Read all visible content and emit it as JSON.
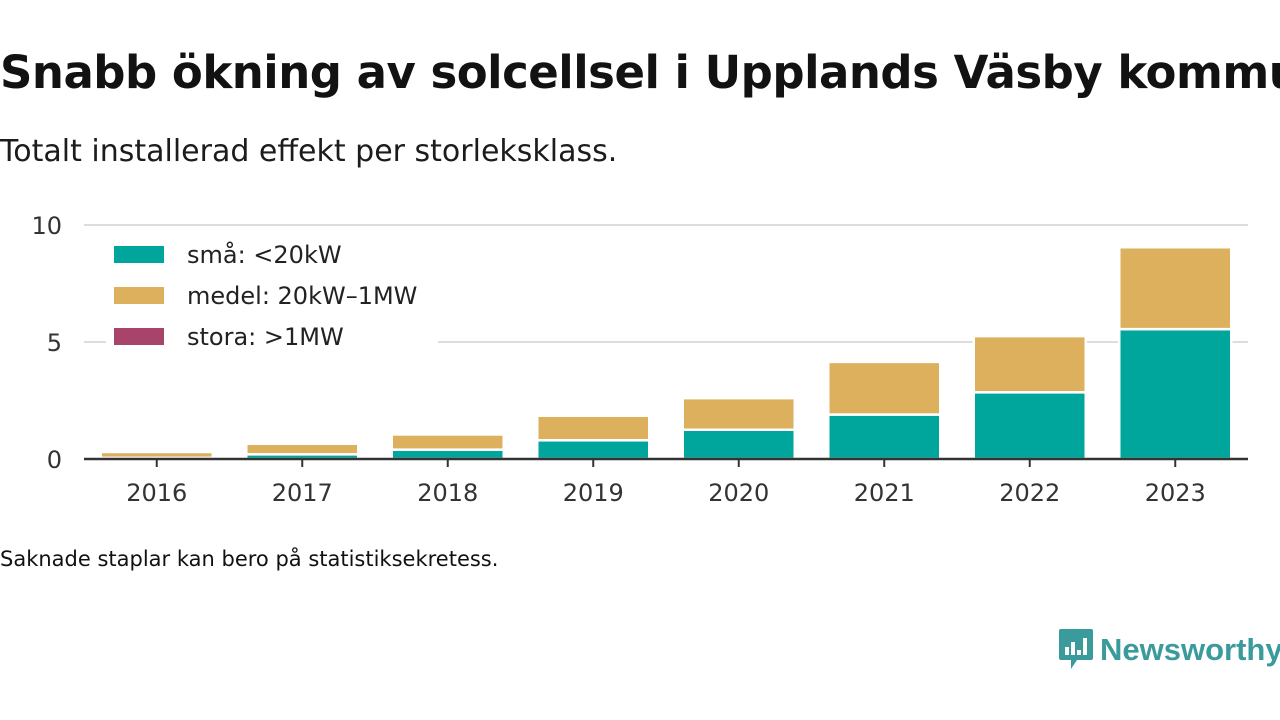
{
  "title": "Snabb ökning av solcellsel i Upplands Väsby kommun",
  "subtitle": "Totalt installerad effekt per storleksklass.",
  "note": "Saknade staplar kan bero på statistiksekretess.",
  "brand": {
    "name": "Newsworthy",
    "color": "#3a9a9c",
    "icon": "newsworthy-logo-icon"
  },
  "chart_data": {
    "type": "bar",
    "stacked": true,
    "categories": [
      "2016",
      "2017",
      "2018",
      "2019",
      "2020",
      "2021",
      "2022",
      "2023"
    ],
    "series": [
      {
        "name": "små: <20kW",
        "color": "#00a69c",
        "values": [
          0.05,
          0.2,
          0.4,
          0.8,
          1.25,
          1.9,
          2.85,
          5.55
        ]
      },
      {
        "name": "medel: 20kW–1MW",
        "color": "#dcb05c",
        "values": [
          0.25,
          0.45,
          0.65,
          1.05,
          1.35,
          2.25,
          2.4,
          3.5
        ]
      },
      {
        "name": "stora: >1MW",
        "color": "#a8446b",
        "values": [
          0,
          0,
          0,
          0,
          0,
          0,
          0,
          0
        ]
      }
    ],
    "ylim": [
      0,
      10
    ],
    "yticks": [
      0,
      5,
      10
    ],
    "xlabel": "",
    "ylabel": "",
    "grid": true,
    "legend_position": "top-left"
  }
}
